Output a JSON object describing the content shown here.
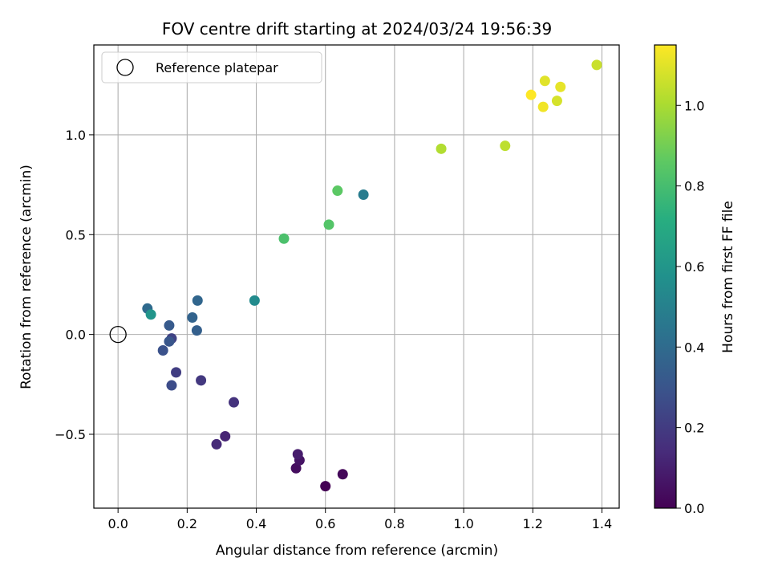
{
  "chart_data": {
    "type": "scatter",
    "title": "FOV centre drift starting at 2024/03/24 19:56:39",
    "xlabel": "Angular distance from reference (arcmin)",
    "ylabel": "Rotation from reference (arcmin)",
    "xlim": [
      -0.07,
      1.45
    ],
    "ylim": [
      -0.87,
      1.45
    ],
    "x_ticks": [
      0.0,
      0.2,
      0.4,
      0.6,
      0.8,
      1.0,
      1.2,
      1.4
    ],
    "x_tick_labels": [
      "0.0",
      "0.2",
      "0.4",
      "0.6",
      "0.8",
      "1.0",
      "1.2",
      "1.4"
    ],
    "y_ticks": [
      -0.5,
      0.0,
      0.5,
      1.0
    ],
    "y_tick_labels": [
      "−0.5",
      "0.0",
      "0.5",
      "1.0"
    ],
    "grid": true,
    "legend": {
      "placement": "top-left",
      "entries": [
        {
          "label": "Reference platepar",
          "marker": "open-circle"
        }
      ]
    },
    "reference_point": {
      "x": 0.0,
      "y": 0.0
    },
    "colorbar": {
      "label": "Hours from first FF file",
      "range": [
        0.0,
        1.15
      ],
      "ticks": [
        0.0,
        0.2,
        0.4,
        0.6,
        0.8,
        1.0
      ],
      "tick_labels": [
        "0.0",
        "0.2",
        "0.4",
        "0.6",
        "0.8",
        "1.0"
      ],
      "colormap": "viridis"
    },
    "points": [
      {
        "x": 0.6,
        "y": -0.76,
        "c": 0.0
      },
      {
        "x": 0.65,
        "y": -0.7,
        "c": 0.02
      },
      {
        "x": 0.515,
        "y": -0.67,
        "c": 0.04
      },
      {
        "x": 0.525,
        "y": -0.63,
        "c": 0.06
      },
      {
        "x": 0.52,
        "y": -0.6,
        "c": 0.09
      },
      {
        "x": 0.31,
        "y": -0.51,
        "c": 0.12
      },
      {
        "x": 0.285,
        "y": -0.55,
        "c": 0.14
      },
      {
        "x": 0.335,
        "y": -0.34,
        "c": 0.17
      },
      {
        "x": 0.24,
        "y": -0.23,
        "c": 0.19
      },
      {
        "x": 0.168,
        "y": -0.19,
        "c": 0.21
      },
      {
        "x": 0.155,
        "y": -0.02,
        "c": 0.23
      },
      {
        "x": 0.155,
        "y": -0.255,
        "c": 0.27
      },
      {
        "x": 0.13,
        "y": -0.08,
        "c": 0.29
      },
      {
        "x": 0.148,
        "y": -0.035,
        "c": 0.31
      },
      {
        "x": 0.148,
        "y": 0.045,
        "c": 0.33
      },
      {
        "x": 0.228,
        "y": 0.02,
        "c": 0.35
      },
      {
        "x": 0.215,
        "y": 0.085,
        "c": 0.37
      },
      {
        "x": 0.23,
        "y": 0.17,
        "c": 0.38
      },
      {
        "x": 0.085,
        "y": 0.13,
        "c": 0.4
      },
      {
        "x": 0.71,
        "y": 0.7,
        "c": 0.48
      },
      {
        "x": 0.395,
        "y": 0.17,
        "c": 0.55
      },
      {
        "x": 0.095,
        "y": 0.1,
        "c": 0.6
      },
      {
        "x": 0.48,
        "y": 0.48,
        "c": 0.82
      },
      {
        "x": 0.61,
        "y": 0.55,
        "c": 0.84
      },
      {
        "x": 0.635,
        "y": 0.72,
        "c": 0.86
      },
      {
        "x": 0.935,
        "y": 0.93,
        "c": 1.02
      },
      {
        "x": 1.12,
        "y": 0.945,
        "c": 1.04
      },
      {
        "x": 1.385,
        "y": 1.35,
        "c": 1.06
      },
      {
        "x": 1.27,
        "y": 1.17,
        "c": 1.08
      },
      {
        "x": 1.235,
        "y": 1.27,
        "c": 1.1
      },
      {
        "x": 1.28,
        "y": 1.24,
        "c": 1.11
      },
      {
        "x": 1.23,
        "y": 1.14,
        "c": 1.13
      },
      {
        "x": 1.195,
        "y": 1.2,
        "c": 1.15
      }
    ]
  }
}
